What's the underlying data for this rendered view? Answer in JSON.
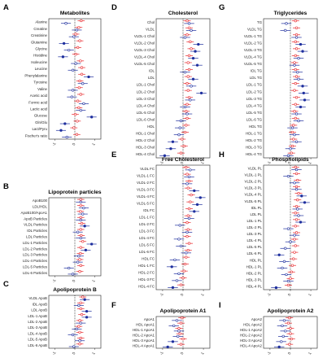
{
  "colors": {
    "red": "#e8262a",
    "blue": "#1e2f9e",
    "grid": "#9a9a9a",
    "frame": "#222222"
  },
  "x_ticks": [
    "-1",
    "0",
    "1"
  ],
  "panels": [
    {
      "letter": "A",
      "title": "Metabolites",
      "rows": [
        "Alanine",
        "Creatine",
        "Creatinine",
        "Glutamine",
        "Glycine",
        "Histidine",
        "Isoleucine",
        "Leucine",
        "Phenylalanine",
        "Tyrosine",
        "Valine",
        "Acetic acid",
        "Formic acid",
        "Lactic acid",
        "Glucose",
        "Gln/Glu",
        "Lact/Pyru",
        "Fischer's ratio"
      ],
      "red": [
        0.32,
        0.2,
        0.05,
        0.25,
        0.15,
        0.05,
        0.28,
        0.35,
        0.35,
        0.25,
        0.22,
        0.3,
        0.15,
        0.2,
        0.02,
        0.12,
        -0.05,
        0.1
      ],
      "blue": [
        -0.45,
        0.1,
        -0.05,
        -0.55,
        -0.3,
        -0.6,
        0.05,
        -0.1,
        0.7,
        0.4,
        -0.1,
        -0.15,
        0.45,
        0.3,
        0.85,
        -0.5,
        -0.7,
        -0.4
      ]
    },
    {
      "letter": "B",
      "title": "Lipoprotein particles",
      "rows": [
        "ApoB100",
        "LDL/HDL",
        "ApoB100/ApoA1",
        "ApoB Particles",
        "VLDL Particles",
        "IDL Particles",
        "LDL Particles",
        "LDL-1 Particles",
        "LDL-2 Particles",
        "LDL-3 Particles",
        "LDL-4 Particles",
        "LDL-5 Particles",
        "LDL-6 Particles"
      ],
      "red": [
        0.3,
        0.3,
        0.28,
        0.3,
        0.35,
        0.3,
        0.32,
        0.4,
        0.3,
        0.28,
        0.25,
        0.3,
        0.25
      ],
      "blue": [
        0.3,
        0.45,
        0.4,
        0.3,
        0.5,
        0.15,
        0.3,
        0.85,
        0.55,
        0.2,
        0.15,
        -0.3,
        -0.1
      ]
    },
    {
      "letter": "C",
      "title": "Apolipoprotein B",
      "rows": [
        "VLDL ApoB",
        "IDL ApoB",
        "LDL ApoB",
        "LDL-1 ApoB",
        "LDL-2 ApoB",
        "LDL-3 ApoB",
        "LDL-4 ApoB",
        "LDL-5 ApoB",
        "LDL-6 ApoB"
      ],
      "red": [
        0.4,
        0.3,
        0.3,
        0.35,
        0.25,
        0.2,
        0.25,
        0.3,
        0.25
      ],
      "blue": [
        0.5,
        0.2,
        0.6,
        0.6,
        0.3,
        0.1,
        -0.1,
        0.25,
        -0.05
      ]
    },
    {
      "letter": "D",
      "title": "Cholesterol",
      "rows": [
        "Chol",
        "VLDL",
        "VLDL-1 Chol",
        "VLDL-2 Chol",
        "VLDL-3 Chol",
        "VLDL-4 Chol",
        "VLDL-5 Chol",
        "IDL",
        "LDL",
        "LDL-1 Chol",
        "LDL-2 Chol",
        "LDL-3 Chol",
        "LDL-4 Chol",
        "LDL-5 Chol",
        "LDL-6 Chol",
        "HDL",
        "HDL-1 Chol",
        "HDL-2 Chol",
        "HDL-3 Chol",
        "HDL-4 Chol"
      ],
      "red": [
        0.2,
        0.3,
        0.2,
        0.35,
        0.4,
        0.3,
        0.25,
        0.3,
        0.25,
        0.2,
        0.25,
        0.3,
        0.2,
        0.15,
        0.2,
        0.15,
        0.1,
        -0.05,
        0.05,
        -0.1
      ],
      "blue": [
        0.3,
        0.4,
        0.1,
        0.75,
        0.6,
        0.5,
        0.7,
        0.1,
        0.5,
        0.4,
        0.9,
        0.35,
        0.1,
        0.2,
        -0.1,
        -0.15,
        -0.2,
        -0.5,
        -0.6,
        -0.9
      ]
    },
    {
      "letter": "E",
      "title": "Free Cholesterol",
      "rows": [
        "VLDL FC",
        "VLDL-1 FC",
        "VLDL-2 FC",
        "VLDL-3 FC",
        "VLDL-4 FC",
        "VLDL-5 FC",
        "IDL FC",
        "LDL-1 FC",
        "LDL-2 FC",
        "LDL-3 FC",
        "LDL-4 FC",
        "LDL-5 FC",
        "LDL-6 FC",
        "HDL FC",
        "HDL-1 FC",
        "HDL-2 FC",
        "HDL-3 FC",
        "HDL-4 FC"
      ],
      "red": [
        0.15,
        0.2,
        0.3,
        0.25,
        0.4,
        0.35,
        0.3,
        0.25,
        0.2,
        0.25,
        0.2,
        0.3,
        0.25,
        0.15,
        0.1,
        0.05,
        0.0,
        -0.1
      ],
      "blue": [
        0.35,
        0.3,
        0.2,
        0.55,
        0.85,
        0.7,
        0.55,
        0.3,
        -0.15,
        0.2,
        -0.2,
        -0.1,
        0.15,
        -0.4,
        -0.55,
        -0.2,
        -0.3,
        -0.5
      ]
    },
    {
      "letter": "F",
      "title": "Apolipoprotein A1",
      "rows": [
        "ApoA1",
        "HDL ApoA1",
        "HDL-1 ApoA1",
        "HDL-2 ApoA1",
        "HDL-3 ApoA1",
        "HDL-4 ApoA1"
      ],
      "red": [
        -0.05,
        -0.1,
        -0.2,
        -0.15,
        0.0,
        -0.1
      ],
      "blue": [
        -0.3,
        -0.45,
        -0.2,
        -0.25,
        -0.5,
        -0.75
      ]
    },
    {
      "letter": "G",
      "title": "Triglycerides",
      "rows": [
        "TG",
        "VLDL TG",
        "VLDL-1 TG",
        "VLDL-2 TG",
        "VLDL-3 TG",
        "VLDL-4 TG",
        "VLDL-5 TG",
        "IDL TG",
        "LDL TG",
        "LDL-1 TG",
        "LDL-2 TG",
        "LDL-3 TG",
        "LDL-4 TG",
        "LDL-5 TG",
        "LDL-6 TG",
        "HDL TG",
        "HDL-1 TG",
        "HDL-2 TG",
        "HDL-3 TG",
        "HDL-4 TG"
      ],
      "red": [
        0.25,
        0.3,
        0.3,
        0.25,
        0.3,
        0.25,
        0.2,
        0.25,
        0.3,
        0.25,
        0.2,
        0.3,
        0.25,
        0.2,
        0.25,
        0.15,
        0.1,
        0.15,
        0.1,
        0.05
      ],
      "blue": [
        -0.2,
        -0.25,
        0.3,
        0.5,
        0.6,
        0.4,
        0.2,
        0.35,
        0.4,
        0.6,
        0.65,
        0.7,
        0.5,
        0.3,
        0.4,
        0.1,
        0.2,
        0.3,
        0.0,
        -0.1
      ]
    },
    {
      "letter": "H",
      "title": "Phospholipids",
      "rows": [
        "VLDL PL",
        "VLDL-1 PL",
        "VLDL-2 PL",
        "VLDL-3 PL",
        "VLDL-4 PL",
        "VLDL-5 PL",
        "IDL PL",
        "LDL PL",
        "LDL-1 PL",
        "LDL-2 PL",
        "LDL-3 PL",
        "LDL-4 PL",
        "LDL-5 PL",
        "LDL-6 PL",
        "HDL PL",
        "HDL-1 PL",
        "HDL-2 PL",
        "HDL-3 PL",
        "HDL-4 PL"
      ],
      "red": [
        0.25,
        0.3,
        0.35,
        0.3,
        0.4,
        0.35,
        0.3,
        0.25,
        0.3,
        0.25,
        0.3,
        0.2,
        0.25,
        0.2,
        0.15,
        0.1,
        0.05,
        0.0,
        -0.1
      ],
      "blue": [
        0.3,
        -0.1,
        0.2,
        0.3,
        0.55,
        0.7,
        0.35,
        0.4,
        0.5,
        -0.1,
        0.2,
        0.0,
        -0.25,
        -0.55,
        -0.3,
        -0.4,
        -0.2,
        -0.1,
        -0.7
      ]
    },
    {
      "letter": "I",
      "title": "Apolipoprotein A2",
      "rows": [
        "ApoA2",
        "HDL ApoA2",
        "HDL-1 ApoA2",
        "HDL-2 ApoA2",
        "HDL-3 ApoA2",
        "HDL-4 ApoA2"
      ],
      "red": [
        -0.05,
        -0.1,
        0.0,
        0.0,
        0.05,
        -0.05
      ],
      "blue": [
        -0.3,
        -0.4,
        -0.25,
        -0.35,
        -0.45,
        -0.55
      ]
    }
  ]
}
